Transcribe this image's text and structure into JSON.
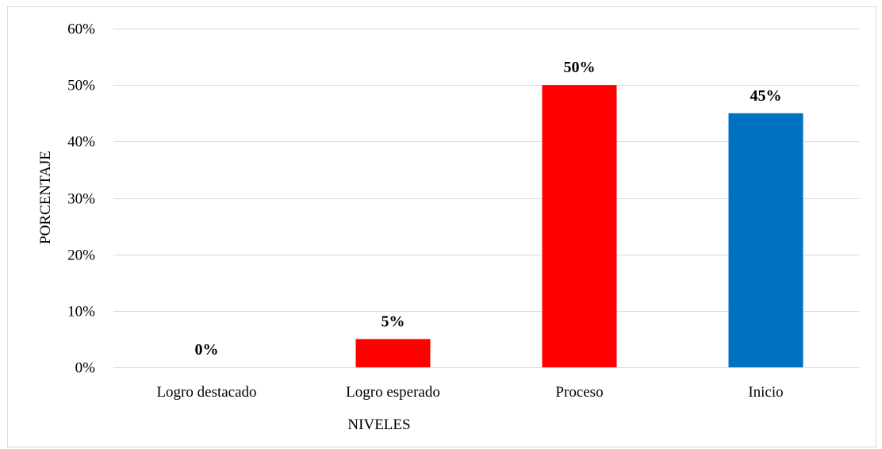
{
  "chart_data": {
    "type": "bar",
    "title": "",
    "xlabel": "NIVELES",
    "ylabel": "PORCENTAJE",
    "categories": [
      "Logro destacado",
      "Logro esperado",
      "Proceso",
      "Inicio"
    ],
    "values": [
      0,
      5,
      50,
      45
    ],
    "value_labels": [
      "0%",
      "5%",
      "50%",
      "45%"
    ],
    "bar_colors": [
      "#ff0000",
      "#ff0000",
      "#ff0000",
      "#0070c0"
    ],
    "ylim": [
      0,
      60
    ],
    "yticks": [
      0,
      10,
      20,
      30,
      40,
      50,
      60
    ],
    "ytick_labels": [
      "0%",
      "10%",
      "20%",
      "30%",
      "40%",
      "50%",
      "60%"
    ],
    "grid": true,
    "legend": "none"
  }
}
